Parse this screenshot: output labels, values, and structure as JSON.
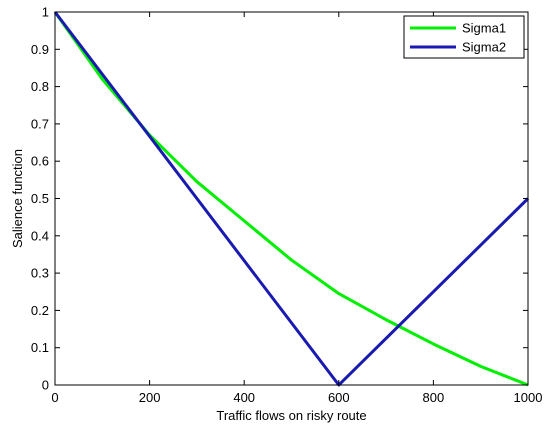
{
  "chart_data": {
    "type": "line",
    "title": "",
    "xlabel": "Traffic flows on risky route",
    "ylabel": "Salience function",
    "xlim": [
      0,
      1000
    ],
    "ylim": [
      0,
      1
    ],
    "grid": false,
    "legend_position": "top-right",
    "xticks": [
      0,
      200,
      400,
      600,
      800,
      1000
    ],
    "xtick_labels": [
      "0",
      "200",
      "400",
      "600",
      "800",
      "1000"
    ],
    "yticks": [
      0,
      0.1,
      0.2,
      0.3,
      0.4,
      0.5,
      0.6,
      0.7,
      0.8,
      0.9,
      1
    ],
    "ytick_labels": [
      "0",
      "0.1",
      "0.2",
      "0.3",
      "0.4",
      "0.5",
      "0.6",
      "0.7",
      "0.8",
      "0.9",
      "1"
    ],
    "series": [
      {
        "name": "Sigma1",
        "color": "#00ee00",
        "x": [
          0,
          100,
          200,
          300,
          400,
          500,
          600,
          700,
          800,
          900,
          1000
        ],
        "y": [
          1,
          0.82,
          0.67,
          0.545,
          0.44,
          0.335,
          0.245,
          0.175,
          0.11,
          0.05,
          0
        ]
      },
      {
        "name": "Sigma2",
        "color": "#1a1ab0",
        "x": [
          0,
          600,
          1000
        ],
        "y": [
          1,
          0,
          0.5
        ]
      }
    ]
  }
}
